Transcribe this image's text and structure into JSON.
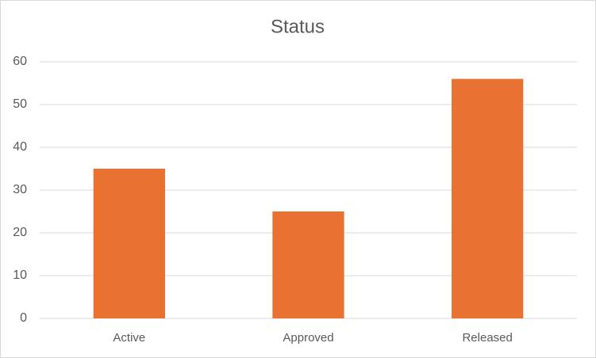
{
  "chart_data": {
    "type": "bar",
    "title": "Status",
    "categories": [
      "Active",
      "Approved",
      "Released"
    ],
    "values": [
      35,
      25,
      56
    ],
    "color": "#e97132",
    "ylim": [
      0,
      60
    ],
    "yticks": [
      0,
      10,
      20,
      30,
      40,
      50,
      60
    ],
    "grid": true
  }
}
